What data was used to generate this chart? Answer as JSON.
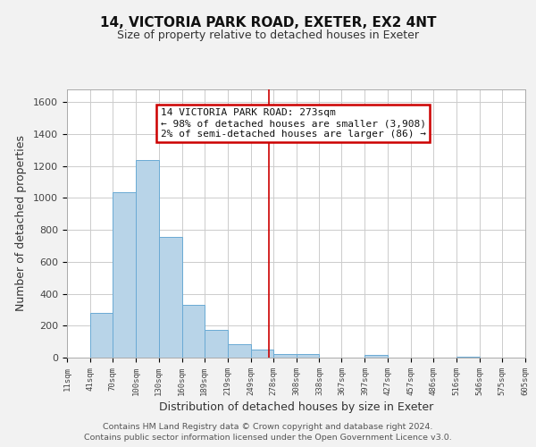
{
  "title": "14, VICTORIA PARK ROAD, EXETER, EX2 4NT",
  "subtitle": "Size of property relative to detached houses in Exeter",
  "xlabel": "Distribution of detached houses by size in Exeter",
  "ylabel": "Number of detached properties",
  "bar_color": "#b8d4e8",
  "bar_edge_color": "#6aaad4",
  "vline_x": 273,
  "vline_color": "#cc0000",
  "annotation_title": "14 VICTORIA PARK ROAD: 273sqm",
  "annotation_line1": "← 98% of detached houses are smaller (3,908)",
  "annotation_line2": "2% of semi-detached houses are larger (86) →",
  "annotation_box_facecolor": "white",
  "annotation_box_edgecolor": "#cc0000",
  "footer_line1": "Contains HM Land Registry data © Crown copyright and database right 2024.",
  "footer_line2": "Contains public sector information licensed under the Open Government Licence v3.0.",
  "bin_edges": [
    11,
    41,
    70,
    100,
    130,
    160,
    189,
    219,
    249,
    278,
    308,
    338,
    367,
    397,
    427,
    457,
    486,
    516,
    546,
    575,
    605
  ],
  "bin_heights": [
    0,
    280,
    1035,
    1240,
    755,
    330,
    175,
    85,
    50,
    25,
    20,
    0,
    0,
    15,
    0,
    0,
    0,
    7,
    0,
    0
  ],
  "ylim": [
    0,
    1680
  ],
  "yticks": [
    0,
    200,
    400,
    600,
    800,
    1000,
    1200,
    1400,
    1600
  ],
  "background_color": "#f2f2f2",
  "plot_background": "#ffffff",
  "grid_color": "#cccccc"
}
